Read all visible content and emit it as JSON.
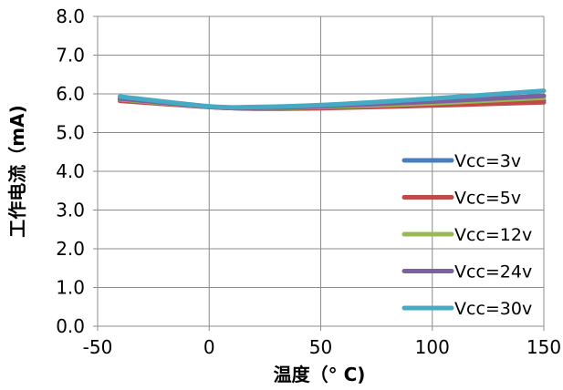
{
  "chart_data": {
    "type": "line",
    "xlabel": "温度（° C)",
    "ylabel": "工作电流（mA)",
    "xlim": [
      -50,
      150
    ],
    "ylim": [
      0,
      8
    ],
    "xticks": [
      "-50",
      "0",
      "50",
      "100",
      "150"
    ],
    "yticks": [
      "0.0",
      "1.0",
      "2.0",
      "3.0",
      "4.0",
      "5.0",
      "6.0",
      "7.0",
      "8.0"
    ],
    "grid": "major gridlines on both axes",
    "legend_position": "right, inside plot",
    "x": [
      -40,
      0,
      20,
      50,
      100,
      150
    ],
    "series": [
      {
        "name": "Vcc=3v",
        "color": "#4a7ebb",
        "values": [
          5.85,
          5.66,
          5.63,
          5.64,
          5.72,
          5.83
        ]
      },
      {
        "name": "Vcc=5v",
        "color": "#be4b48",
        "values": [
          5.82,
          5.66,
          5.62,
          5.63,
          5.7,
          5.78
        ]
      },
      {
        "name": "Vcc=12v",
        "color": "#98b954",
        "values": [
          5.86,
          5.67,
          5.64,
          5.66,
          5.76,
          5.9
        ]
      },
      {
        "name": "Vcc=24v",
        "color": "#7d60a0",
        "values": [
          5.88,
          5.67,
          5.64,
          5.68,
          5.8,
          5.95
        ]
      },
      {
        "name": "Vcc=30v",
        "color": "#46aac5",
        "values": [
          5.93,
          5.68,
          5.66,
          5.71,
          5.88,
          6.08
        ]
      }
    ]
  }
}
